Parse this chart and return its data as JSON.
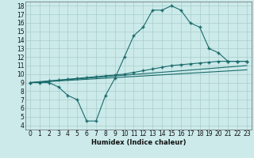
{
  "xlabel": "Humidex (Indice chaleur)",
  "bg_color": "#cceaea",
  "grid_color": "#aacccc",
  "line_color": "#1a6b6b",
  "xlim": [
    -0.5,
    23.5
  ],
  "ylim": [
    3.5,
    18.5
  ],
  "xticks": [
    0,
    1,
    2,
    3,
    4,
    5,
    6,
    7,
    8,
    9,
    10,
    11,
    12,
    13,
    14,
    15,
    16,
    17,
    18,
    19,
    20,
    21,
    22,
    23
  ],
  "yticks": [
    4,
    5,
    6,
    7,
    8,
    9,
    10,
    11,
    12,
    13,
    14,
    15,
    16,
    17,
    18
  ],
  "curve1_x": [
    0,
    1,
    2,
    3,
    4,
    5,
    6,
    7,
    8,
    9,
    10,
    11,
    12,
    13,
    14,
    15,
    16,
    17,
    18,
    19,
    20,
    21,
    22,
    23
  ],
  "curve1_y": [
    9.0,
    9.0,
    9.0,
    8.5,
    7.5,
    7.0,
    4.5,
    4.5,
    7.5,
    9.5,
    12.0,
    14.5,
    15.5,
    17.5,
    17.5,
    18.0,
    17.5,
    16.0,
    15.5,
    13.0,
    12.5,
    11.5,
    11.5,
    11.5
  ],
  "curve2_x": [
    0,
    1,
    2,
    3,
    4,
    5,
    6,
    7,
    8,
    9,
    10,
    11,
    12,
    13,
    14,
    15,
    16,
    17,
    18,
    19,
    20,
    21,
    22,
    23
  ],
  "curve2_y": [
    9.0,
    9.1,
    9.2,
    9.3,
    9.4,
    9.5,
    9.6,
    9.7,
    9.8,
    9.9,
    10.0,
    10.2,
    10.4,
    10.6,
    10.8,
    11.0,
    11.1,
    11.2,
    11.3,
    11.4,
    11.5,
    11.5,
    11.5,
    11.5
  ],
  "curve3_x": [
    0,
    23
  ],
  "curve3_y": [
    9.0,
    11.0
  ],
  "curve4_x": [
    0,
    23
  ],
  "curve4_y": [
    9.0,
    10.5
  ],
  "xlabel_fontsize": 6,
  "tick_fontsize": 5.5
}
